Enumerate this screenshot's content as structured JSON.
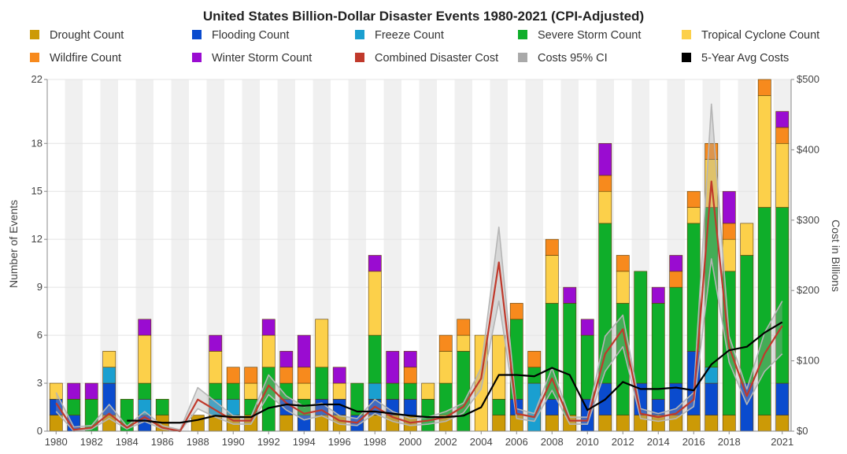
{
  "chart_data": {
    "type": "bar",
    "title": "United States Billion-Dollar Disaster Events 1980-2021 (CPI-Adjusted)",
    "ylabel": "Number of Events",
    "y2label": "Cost in Billions",
    "ylim": [
      0,
      22
    ],
    "y2lim": [
      0,
      500
    ],
    "yticks": [
      "0",
      "3",
      "6",
      "9",
      "12",
      "15",
      "18",
      "22"
    ],
    "y2ticks": [
      "$0",
      "$100",
      "$200",
      "$300",
      "$400",
      "$500"
    ],
    "y2tick_values": [
      0,
      100,
      200,
      300,
      400,
      500
    ],
    "ytick_values": [
      0,
      3,
      6,
      9,
      12,
      15,
      18,
      22
    ],
    "xtick_labels": [
      "1980",
      "1982",
      "1984",
      "1986",
      "1988",
      "1990",
      "1992",
      "1994",
      "1996",
      "1998",
      "2000",
      "2002",
      "2004",
      "2006",
      "2008",
      "2010",
      "2012",
      "2014",
      "2016",
      "2018",
      "2021"
    ],
    "xtick_years": [
      1980,
      1982,
      1984,
      1986,
      1988,
      1990,
      1992,
      1994,
      1996,
      1998,
      2000,
      2002,
      2004,
      2006,
      2008,
      2010,
      2012,
      2014,
      2016,
      2018,
      2021
    ],
    "years": [
      1980,
      1981,
      1982,
      1983,
      1984,
      1985,
      1986,
      1987,
      1988,
      1989,
      1990,
      1991,
      1992,
      1993,
      1994,
      1995,
      1996,
      1997,
      1998,
      1999,
      2000,
      2001,
      2002,
      2003,
      2004,
      2005,
      2006,
      2007,
      2008,
      2009,
      2010,
      2011,
      2012,
      2013,
      2014,
      2015,
      2016,
      2017,
      2018,
      2019,
      2020,
      2021
    ],
    "legend": [
      {
        "name": "Drought Count",
        "color": "#cc9a06"
      },
      {
        "name": "Flooding Count",
        "color": "#0a4bce"
      },
      {
        "name": "Freeze Count",
        "color": "#1a9fd0"
      },
      {
        "name": "Severe Storm Count",
        "color": "#0fae2a"
      },
      {
        "name": "Tropical Cyclone Count",
        "color": "#fcd04a"
      },
      {
        "name": "Wildfire Count",
        "color": "#f78a1d"
      },
      {
        "name": "Winter Storm Count",
        "color": "#9a0cd1"
      },
      {
        "name": "Combined Disaster Cost",
        "color": "#c0392b"
      },
      {
        "name": "Costs 95% CI",
        "color": "#a9a9a9"
      },
      {
        "name": "5-Year Avg Costs",
        "color": "#000000"
      }
    ],
    "series": [
      {
        "name": "Drought Count",
        "color": "#cc9a06",
        "values": [
          1,
          0,
          0,
          1,
          0,
          0,
          1,
          0,
          1,
          1,
          1,
          1,
          0,
          1,
          0,
          1,
          1,
          0,
          1,
          1,
          1,
          0,
          1,
          0,
          0,
          1,
          1,
          0,
          1,
          1,
          0,
          1,
          1,
          1,
          1,
          1,
          1,
          1,
          1,
          0,
          1,
          1
        ]
      },
      {
        "name": "Flooding Count",
        "color": "#0a4bce",
        "values": [
          1,
          1,
          0,
          2,
          0,
          1,
          0,
          0,
          0,
          0,
          0,
          0,
          0,
          1,
          1,
          1,
          1,
          1,
          1,
          1,
          1,
          0,
          0,
          0,
          0,
          0,
          1,
          0,
          1,
          0,
          2,
          2,
          0,
          2,
          1,
          2,
          4,
          2,
          0,
          3,
          0,
          2
        ]
      },
      {
        "name": "Freeze Count",
        "color": "#1a9fd0",
        "values": [
          0,
          0,
          0,
          1,
          0,
          1,
          0,
          0,
          0,
          1,
          1,
          0,
          0,
          0,
          0,
          0,
          0,
          0,
          1,
          0,
          0,
          0,
          0,
          0,
          0,
          0,
          0,
          3,
          0,
          0,
          0,
          0,
          0,
          0,
          0,
          0,
          0,
          1,
          0,
          0,
          0,
          0
        ]
      },
      {
        "name": "Severe Storm Count",
        "color": "#0fae2a",
        "values": [
          0,
          1,
          2,
          0,
          2,
          1,
          1,
          0,
          0,
          1,
          1,
          1,
          4,
          1,
          1,
          2,
          0,
          2,
          3,
          1,
          1,
          2,
          2,
          5,
          0,
          1,
          5,
          1,
          6,
          7,
          4,
          10,
          7,
          7,
          6,
          6,
          8,
          10,
          9,
          8,
          13,
          11
        ]
      },
      {
        "name": "Tropical Cyclone Count",
        "color": "#fcd04a",
        "values": [
          1,
          0,
          0,
          1,
          0,
          3,
          0,
          0,
          0,
          2,
          0,
          1,
          2,
          0,
          1,
          3,
          1,
          0,
          4,
          0,
          0,
          1,
          2,
          1,
          6,
          4,
          0,
          0,
          3,
          0,
          0,
          2,
          2,
          0,
          0,
          0,
          1,
          3,
          2,
          2,
          7,
          4
        ]
      },
      {
        "name": "Wildfire Count",
        "color": "#f78a1d",
        "values": [
          0,
          0,
          0,
          0,
          0,
          0,
          0,
          0,
          0,
          0,
          1,
          1,
          0,
          1,
          1,
          0,
          0,
          0,
          0,
          0,
          1,
          0,
          1,
          1,
          0,
          0,
          1,
          1,
          1,
          0,
          0,
          1,
          1,
          0,
          0,
          1,
          1,
          1,
          1,
          0,
          1,
          1
        ]
      },
      {
        "name": "Winter Storm Count",
        "color": "#9a0cd1",
        "values": [
          0,
          1,
          1,
          0,
          0,
          1,
          0,
          0,
          0,
          1,
          0,
          0,
          1,
          1,
          2,
          0,
          1,
          0,
          1,
          2,
          1,
          0,
          0,
          0,
          0,
          0,
          0,
          0,
          0,
          1,
          1,
          2,
          0,
          0,
          1,
          1,
          0,
          0,
          2,
          0,
          0,
          1
        ]
      },
      {
        "name": "Combined Disaster Cost",
        "color": "#c0392b",
        "values": [
          40,
          2,
          5,
          25,
          5,
          20,
          5,
          0,
          45,
          30,
          15,
          15,
          65,
          40,
          25,
          30,
          15,
          12,
          35,
          20,
          12,
          15,
          20,
          35,
          75,
          240,
          25,
          20,
          75,
          15,
          15,
          110,
          145,
          25,
          20,
          25,
          45,
          355,
          120,
          50,
          110,
          150
        ]
      },
      {
        "name": "5-Year Avg Costs",
        "color": "#000000",
        "values": [
          null,
          null,
          null,
          null,
          15,
          15,
          12,
          12,
          16,
          22,
          20,
          20,
          33,
          38,
          36,
          38,
          38,
          28,
          28,
          25,
          22,
          20,
          20,
          22,
          34,
          80,
          80,
          78,
          90,
          80,
          30,
          45,
          70,
          60,
          60,
          62,
          58,
          95,
          115,
          120,
          140,
          155
        ]
      },
      {
        "name": "Costs 95% CI Upper",
        "color": "#a9a9a9",
        "values": [
          55,
          6,
          8,
          38,
          7,
          28,
          8,
          2,
          62,
          42,
          22,
          20,
          80,
          50,
          35,
          40,
          22,
          18,
          45,
          28,
          18,
          20,
          28,
          40,
          90,
          290,
          32,
          25,
          90,
          20,
          20,
          135,
          165,
          32,
          25,
          32,
          55,
          465,
          135,
          60,
          140,
          185
        ]
      },
      {
        "name": "Costs 95% CI Lower",
        "color": "#a9a9a9",
        "values": [
          28,
          0,
          3,
          18,
          3,
          14,
          3,
          0,
          32,
          20,
          10,
          10,
          52,
          30,
          16,
          22,
          10,
          8,
          25,
          14,
          8,
          10,
          14,
          26,
          60,
          185,
          18,
          14,
          58,
          10,
          10,
          85,
          120,
          18,
          14,
          18,
          35,
          245,
          98,
          38,
          85,
          110
        ]
      }
    ]
  }
}
